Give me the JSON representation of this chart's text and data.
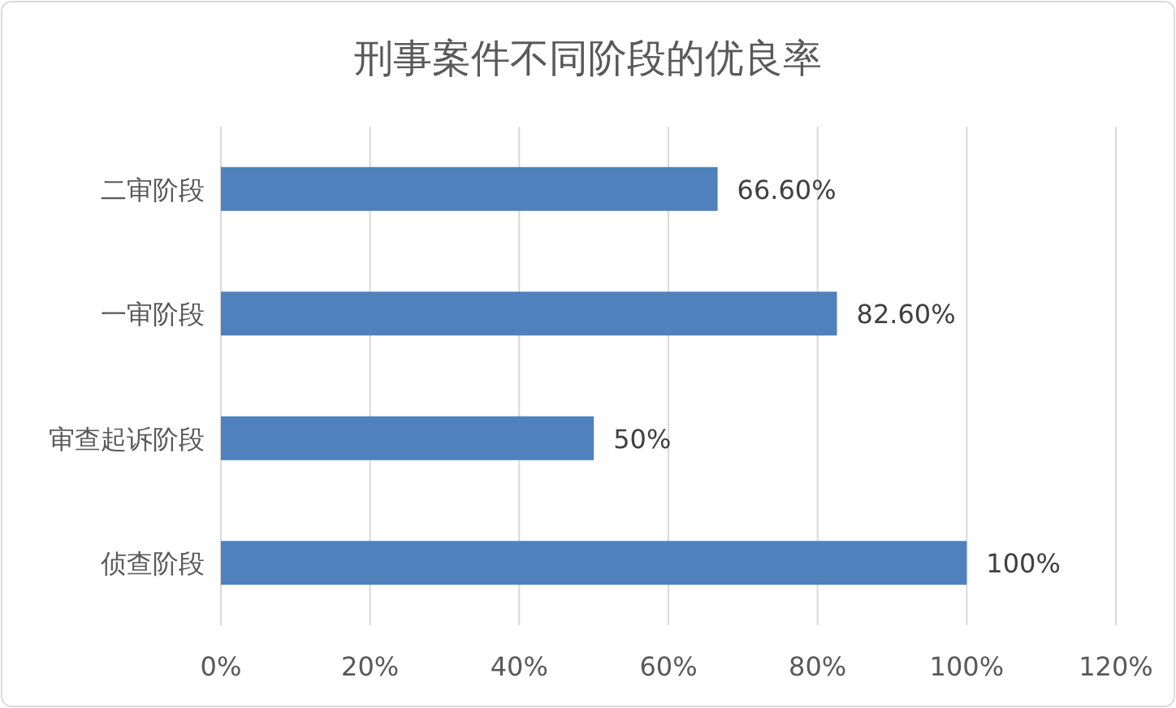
{
  "chart_data": {
    "type": "bar",
    "orientation": "horizontal",
    "title": "刑事案件不同阶段的优良率",
    "categories": [
      "二审阶段",
      "一审阶段",
      "审查起诉阶段",
      "侦查阶段"
    ],
    "series": [
      {
        "color": "#4f81bd",
        "values": [
          66.6,
          82.6,
          50,
          100
        ],
        "value_labels": [
          "66.60%",
          "82.60%",
          "50%",
          "100%"
        ]
      }
    ],
    "xlim": [
      0,
      120
    ],
    "xticks": [
      {
        "value": 0,
        "label": "0%"
      },
      {
        "value": 20,
        "label": "20%"
      },
      {
        "value": 40,
        "label": "40%"
      },
      {
        "value": 60,
        "label": "60%"
      },
      {
        "value": 80,
        "label": "80%"
      },
      {
        "value": 100,
        "label": "100%"
      },
      {
        "value": 120,
        "label": "120%"
      }
    ],
    "grid": "x"
  }
}
